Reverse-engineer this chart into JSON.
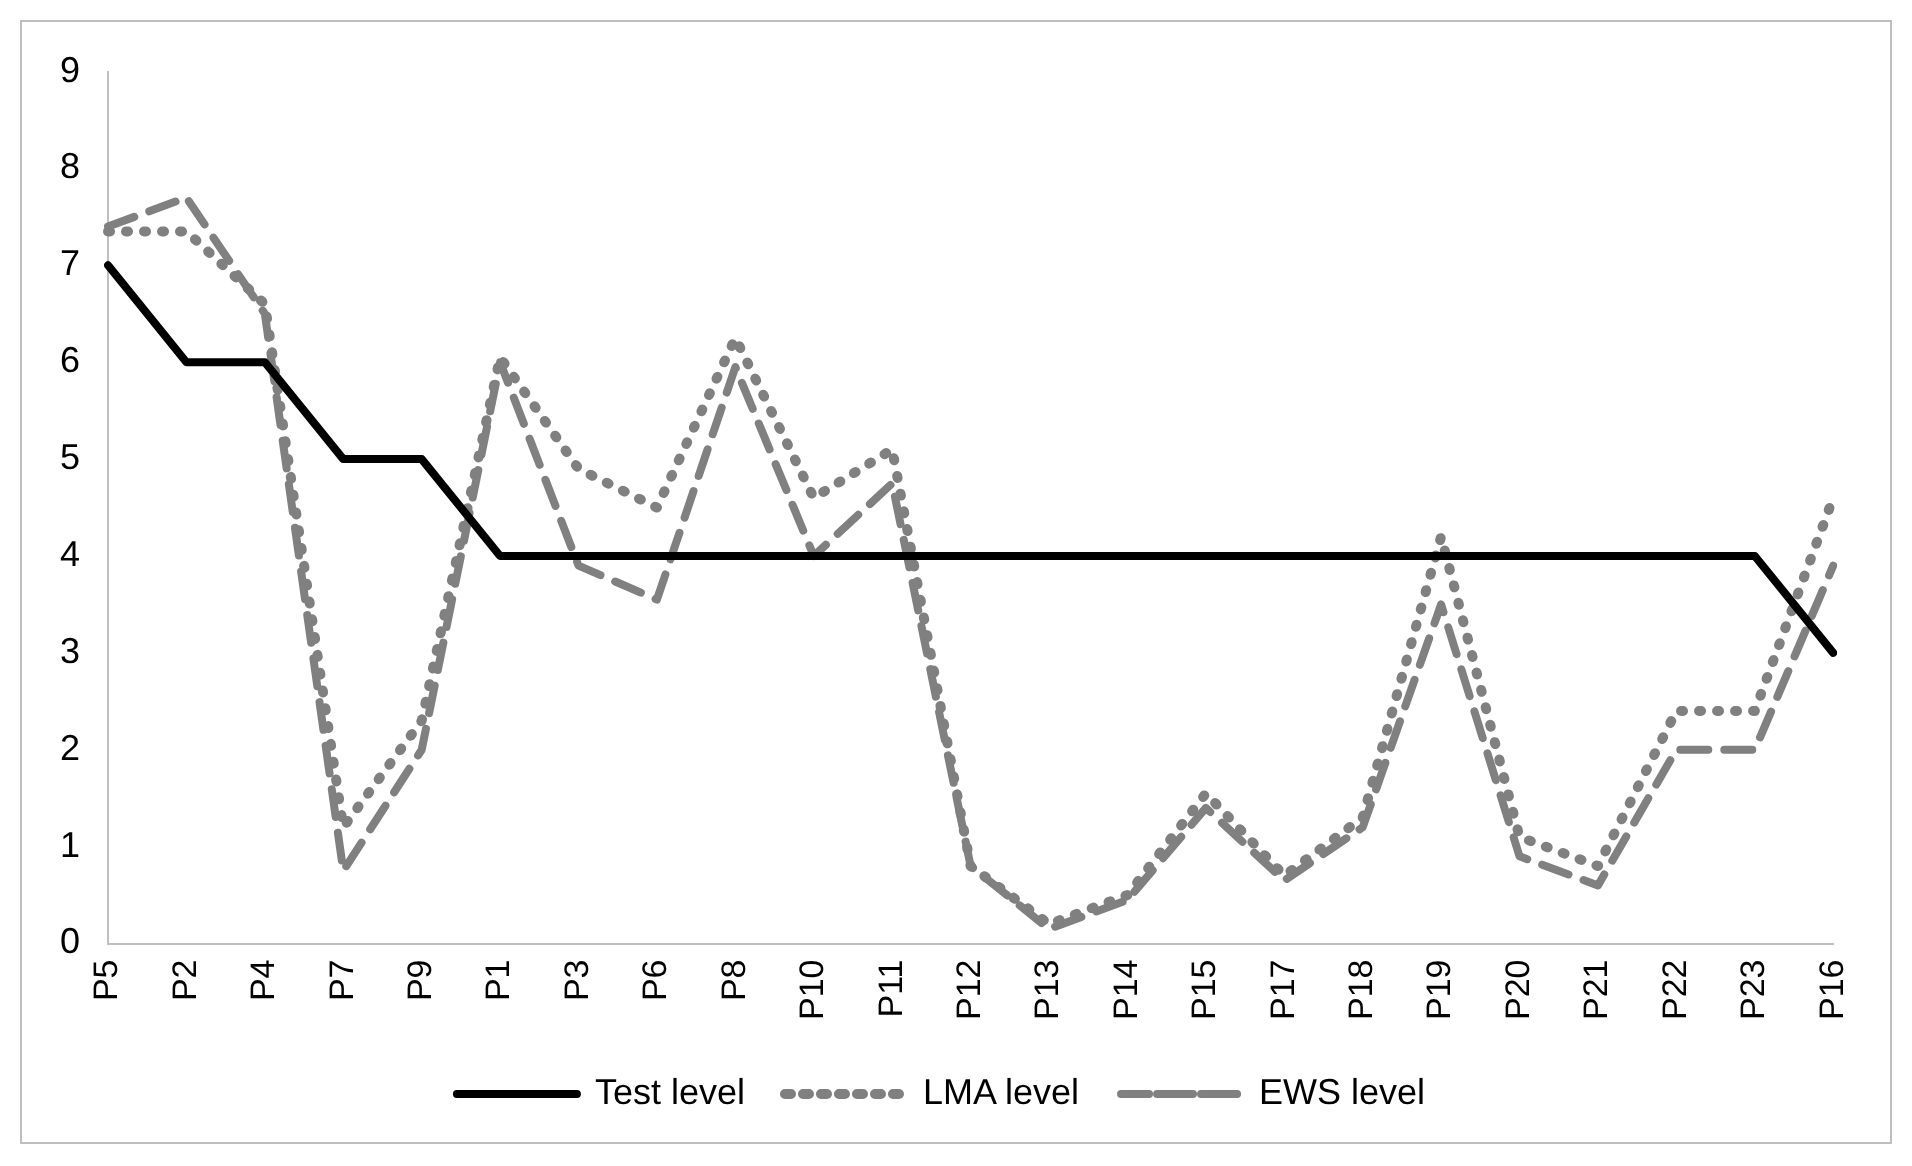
{
  "chart_data": {
    "type": "line",
    "categories": [
      "P5",
      "P2",
      "P4",
      "P7",
      "P9",
      "P1",
      "P3",
      "P6",
      "P8",
      "P10",
      "P11",
      "P12",
      "P13",
      "P14",
      "P15",
      "P17",
      "P18",
      "P19",
      "P20",
      "P21",
      "P22",
      "P23",
      "P16"
    ],
    "ylim": [
      0,
      9
    ],
    "yticks": [
      0,
      1,
      2,
      3,
      4,
      5,
      6,
      7,
      8,
      9
    ],
    "grid": false,
    "legend": "bottom",
    "marker": "none",
    "series": [
      {
        "name": "Test level",
        "color": "#000000",
        "line_style": "solid",
        "values": [
          7,
          6,
          6,
          5,
          5,
          4,
          4,
          4,
          4,
          4,
          4,
          4,
          4,
          4,
          4,
          4,
          4,
          4,
          4,
          4,
          4,
          4,
          3
        ]
      },
      {
        "name": "LMA level",
        "color": "#808080",
        "line_style": "dotted",
        "values": [
          7.35,
          7.35,
          6.6,
          1.2,
          2.3,
          6.05,
          4.9,
          4.5,
          6.25,
          4.6,
          5.1,
          0.8,
          0.2,
          0.5,
          1.55,
          0.7,
          1.3,
          4.2,
          1.1,
          0.8,
          2.4,
          2.4,
          4.6
        ]
      },
      {
        "name": "EWS level",
        "color": "#808080",
        "line_style": "dashed",
        "values": [
          7.4,
          7.7,
          6.5,
          0.75,
          2.0,
          6.0,
          3.9,
          3.55,
          5.95,
          4.0,
          4.75,
          0.8,
          0.15,
          0.45,
          1.4,
          0.65,
          1.2,
          3.5,
          0.9,
          0.6,
          2.0,
          2.0,
          3.9
        ]
      }
    ]
  }
}
